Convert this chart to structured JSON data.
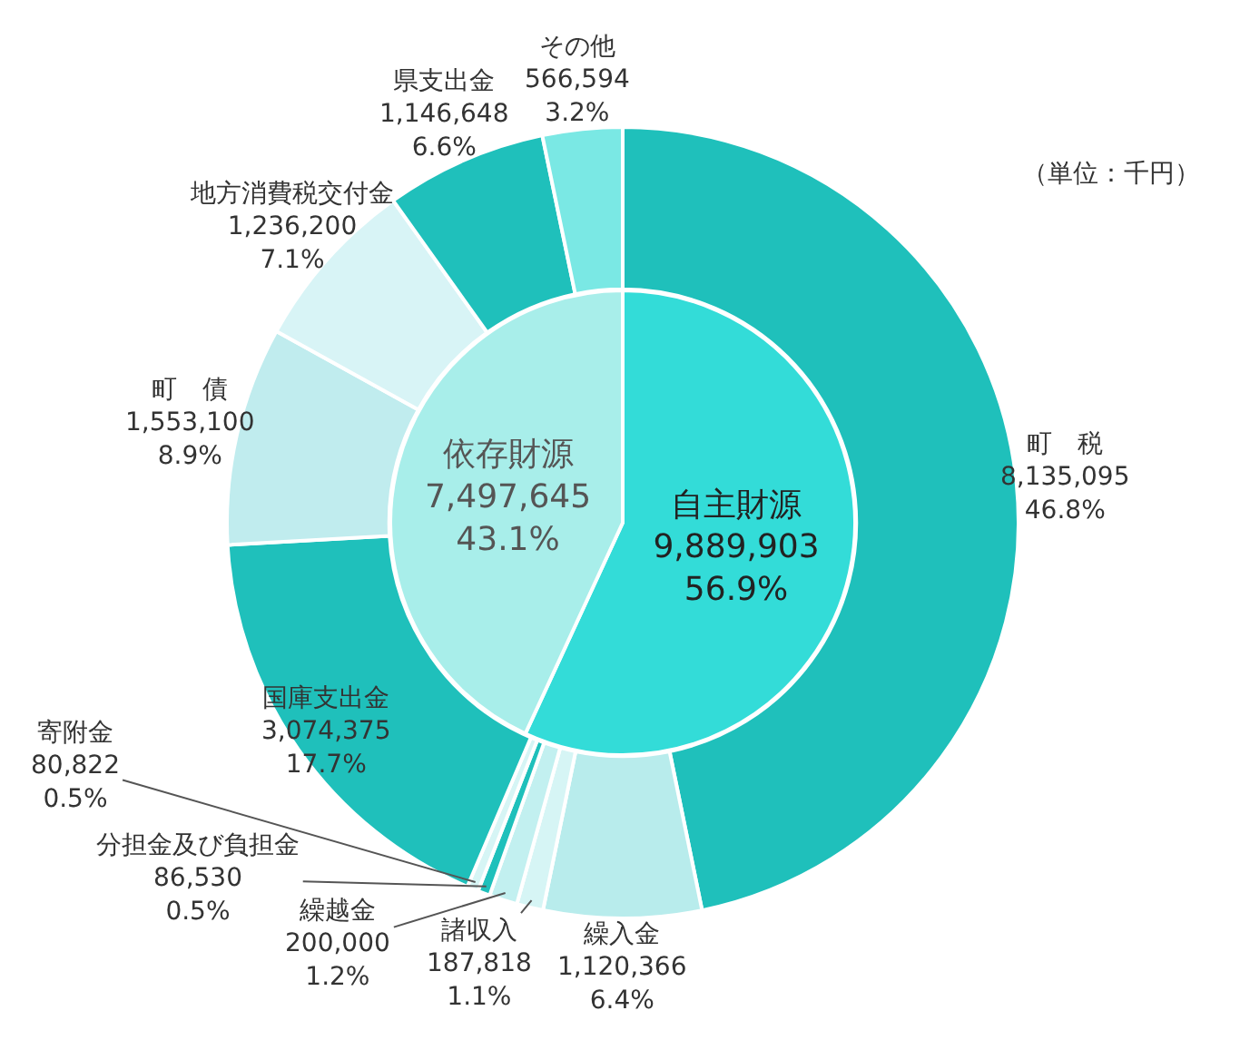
{
  "chart_data": [
    {
      "type": "donut",
      "annotations": [
        "（単位：千円）"
      ],
      "categories": [
        "町　税",
        "繰入金",
        "諸収入",
        "繰越金",
        "分担金及び負担金",
        "寄附金",
        "国庫支出金",
        "町　債",
        "地方消費税交付金",
        "県支出金",
        "その他"
      ],
      "values": [
        8135095,
        1120366,
        187818,
        200000,
        86530,
        80822,
        3074375,
        1553100,
        1236200,
        1146648,
        566594
      ],
      "colors": [
        "#1fc0bb",
        "#b8ecec",
        "#d6f5f5",
        "#c2f0f0",
        "#1fc0bb",
        "#d6f5f5",
        "#1fc0bb",
        "#c0ecee",
        "#d8f4f6",
        "#1fc0bb",
        "#7ae8e4"
      ],
      "value_labels": [
        "8,135,095\n46.8%",
        "1,120,366\n6.4%",
        "187,818\n1.1%",
        "200,000\n1.2%",
        "86,530\n0.5%",
        "80,822\n0.5%",
        "3,074,375\n17.7%",
        "1,553,100\n8.9%",
        "1,236,200\n7.1%",
        "1,146,648\n6.6%",
        "566,594\n3.2%"
      ]
    },
    {
      "type": "pie",
      "categories": [
        "自主財源",
        "依存財源"
      ],
      "values": [
        9889903,
        7497645
      ],
      "colors": [
        "#33dcd8",
        "#a8eeea"
      ],
      "value_labels": [
        "9,889,903\n56.9%",
        "7,497,645\n43.1%"
      ]
    }
  ]
}
